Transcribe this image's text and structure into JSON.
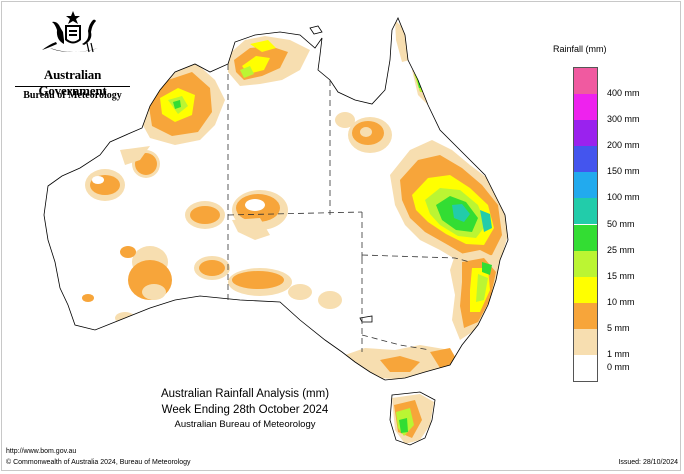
{
  "header": {
    "government": "Australian Government",
    "bureau": "Bureau of Meteorology"
  },
  "map": {
    "title_line1": "Australian Rainfall Analysis (mm)",
    "title_line2": "Week Ending 28th October 2024",
    "title_line3": "Australian Bureau of Meteorology",
    "region": "Australia",
    "land_color": "#ffffff",
    "coast_color": "#000000",
    "border_style": "dashed"
  },
  "legend": {
    "title": "Rainfall (mm)",
    "items": [
      {
        "label": "400 mm",
        "color": "#f05aa0"
      },
      {
        "label": "300 mm",
        "color": "#ee22ee"
      },
      {
        "label": "200 mm",
        "color": "#9a22ee"
      },
      {
        "label": "150 mm",
        "color": "#4455ee"
      },
      {
        "label": "100 mm",
        "color": "#22aaee"
      },
      {
        "label": "50 mm",
        "color": "#22ccaa"
      },
      {
        "label": "25 mm",
        "color": "#33dd33"
      },
      {
        "label": "15 mm",
        "color": "#bbf533"
      },
      {
        "label": "10 mm",
        "color": "#ffff00"
      },
      {
        "label": "5 mm",
        "color": "#f7a53a"
      },
      {
        "label": "1 mm",
        "color": "#f7deb0"
      },
      {
        "label": "0 mm",
        "color": "#ffffff"
      }
    ]
  },
  "footer": {
    "url": "http://www.bom.gov.au",
    "copyright": "© Commonwealth of Australia 2024, Bureau of Meteorology",
    "issued": "Issued: 28/10/2024"
  }
}
